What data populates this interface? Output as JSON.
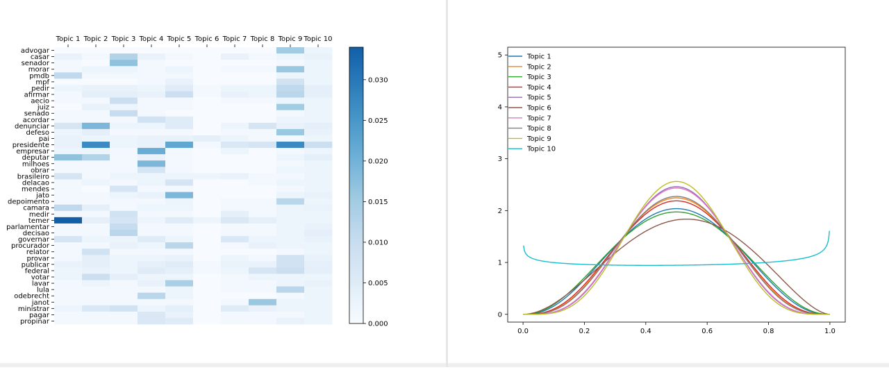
{
  "heatmap": {
    "chart_data": {
      "type": "heatmap",
      "columns": [
        "Topic 1",
        "Topic 2",
        "Topic 3",
        "Topic 4",
        "Topic 5",
        "Topic 6",
        "Topic 7",
        "Topic 8",
        "Topic 9",
        "Topic 10"
      ],
      "rows": [
        "advogar",
        "casar",
        "senador",
        "morar",
        "pmdb",
        "mpf",
        "pedir",
        "afirmar",
        "aecio",
        "juiz",
        "senado",
        "acordar",
        "denunciar",
        "defeso",
        "pai",
        "presidente",
        "empresar",
        "deputar",
        "milhoes",
        "obrar",
        "brasileiro",
        "delacao",
        "mendes",
        "jato",
        "depoimento",
        "camara",
        "medir",
        "temer",
        "parlamentar",
        "decisao",
        "governar",
        "procurador",
        "relator",
        "provar",
        "publicar",
        "federal",
        "votar",
        "lavar",
        "lula",
        "odebrecht",
        "janot",
        "ministrar",
        "pagar",
        "propinar"
      ],
      "values": [
        [
          0.0,
          0.0,
          0.0,
          0.0,
          0.0,
          0.0,
          0.0,
          0.0,
          0.015,
          0.002
        ],
        [
          0.003,
          0.001,
          0.013,
          0.003,
          0.001,
          0.0,
          0.003,
          0.001,
          0.002,
          0.003
        ],
        [
          0.001,
          0.0,
          0.017,
          0.001,
          0.0,
          0.0,
          0.0,
          0.0,
          0.001,
          0.002
        ],
        [
          0.001,
          0.002,
          0.002,
          0.001,
          0.002,
          0.0,
          0.001,
          0.001,
          0.016,
          0.002
        ],
        [
          0.011,
          0.001,
          0.001,
          0.001,
          0.001,
          0.0,
          0.0,
          0.0,
          0.002,
          0.002
        ],
        [
          0.0,
          0.0,
          0.0,
          0.001,
          0.003,
          0.0,
          0.0,
          0.0,
          0.008,
          0.002
        ],
        [
          0.002,
          0.003,
          0.003,
          0.002,
          0.005,
          0.001,
          0.002,
          0.002,
          0.011,
          0.004
        ],
        [
          0.001,
          0.004,
          0.004,
          0.003,
          0.009,
          0.001,
          0.003,
          0.002,
          0.012,
          0.004
        ],
        [
          0.001,
          0.001,
          0.009,
          0.001,
          0.001,
          0.0,
          0.001,
          0.001,
          0.002,
          0.002
        ],
        [
          0.0,
          0.003,
          0.002,
          0.001,
          0.001,
          0.0,
          0.0,
          0.0,
          0.015,
          0.002
        ],
        [
          0.001,
          0.001,
          0.01,
          0.001,
          0.0,
          0.0,
          0.0,
          0.0,
          0.001,
          0.002
        ],
        [
          0.001,
          0.001,
          0.001,
          0.008,
          0.005,
          0.0,
          0.0,
          0.0,
          0.002,
          0.002
        ],
        [
          0.007,
          0.019,
          0.002,
          0.002,
          0.005,
          0.0,
          0.002,
          0.007,
          0.003,
          0.004
        ],
        [
          0.002,
          0.004,
          0.001,
          0.001,
          0.001,
          0.0,
          0.001,
          0.001,
          0.016,
          0.003
        ],
        [
          0.003,
          0.002,
          0.002,
          0.003,
          0.003,
          0.004,
          0.002,
          0.001,
          0.001,
          0.002
        ],
        [
          0.003,
          0.027,
          0.002,
          0.003,
          0.022,
          0.001,
          0.006,
          0.007,
          0.027,
          0.009
        ],
        [
          0.002,
          0.002,
          0.001,
          0.021,
          0.001,
          0.0,
          0.002,
          0.0,
          0.001,
          0.002
        ],
        [
          0.017,
          0.013,
          0.001,
          0.003,
          0.001,
          0.0,
          0.0,
          0.0,
          0.002,
          0.004
        ],
        [
          0.001,
          0.001,
          0.001,
          0.019,
          0.001,
          0.0,
          0.0,
          0.0,
          0.001,
          0.002
        ],
        [
          0.001,
          0.001,
          0.001,
          0.007,
          0.001,
          0.0,
          0.0,
          0.0,
          0.002,
          0.002
        ],
        [
          0.007,
          0.001,
          0.002,
          0.002,
          0.002,
          0.002,
          0.003,
          0.001,
          0.001,
          0.002
        ],
        [
          0.001,
          0.002,
          0.001,
          0.002,
          0.007,
          0.0,
          0.0,
          0.001,
          0.002,
          0.002
        ],
        [
          0.001,
          0.0,
          0.007,
          0.001,
          0.001,
          0.0,
          0.0,
          0.0,
          0.001,
          0.002
        ],
        [
          0.001,
          0.001,
          0.002,
          0.003,
          0.019,
          0.0,
          0.0,
          0.0,
          0.002,
          0.003
        ],
        [
          0.001,
          0.001,
          0.001,
          0.001,
          0.002,
          0.0,
          0.001,
          0.001,
          0.012,
          0.002
        ],
        [
          0.011,
          0.004,
          0.001,
          0.002,
          0.002,
          0.0,
          0.001,
          0.001,
          0.002,
          0.003
        ],
        [
          0.001,
          0.001,
          0.008,
          0.001,
          0.001,
          0.0,
          0.004,
          0.001,
          0.002,
          0.002
        ],
        [
          0.034,
          0.004,
          0.007,
          0.002,
          0.005,
          0.002,
          0.006,
          0.004,
          0.002,
          0.002
        ],
        [
          0.001,
          0.001,
          0.01,
          0.001,
          0.001,
          0.0,
          0.001,
          0.001,
          0.002,
          0.003
        ],
        [
          0.001,
          0.001,
          0.012,
          0.001,
          0.001,
          0.0,
          0.001,
          0.001,
          0.002,
          0.004
        ],
        [
          0.007,
          0.002,
          0.002,
          0.005,
          0.002,
          0.0,
          0.006,
          0.002,
          0.002,
          0.003
        ],
        [
          0.001,
          0.001,
          0.003,
          0.002,
          0.012,
          0.0,
          0.001,
          0.003,
          0.002,
          0.002
        ],
        [
          0.001,
          0.008,
          0.001,
          0.001,
          0.001,
          0.0,
          0.0,
          0.0,
          0.001,
          0.002
        ],
        [
          0.001,
          0.004,
          0.002,
          0.002,
          0.003,
          0.0,
          0.002,
          0.001,
          0.008,
          0.003
        ],
        [
          0.003,
          0.004,
          0.002,
          0.004,
          0.005,
          0.001,
          0.003,
          0.003,
          0.008,
          0.004
        ],
        [
          0.002,
          0.003,
          0.002,
          0.005,
          0.004,
          0.001,
          0.002,
          0.007,
          0.009,
          0.004
        ],
        [
          0.002,
          0.009,
          0.004,
          0.002,
          0.002,
          0.0,
          0.001,
          0.002,
          0.002,
          0.002
        ],
        [
          0.001,
          0.002,
          0.001,
          0.003,
          0.014,
          0.0,
          0.001,
          0.001,
          0.002,
          0.003
        ],
        [
          0.001,
          0.001,
          0.001,
          0.001,
          0.002,
          0.0,
          0.001,
          0.001,
          0.012,
          0.002
        ],
        [
          0.001,
          0.001,
          0.001,
          0.012,
          0.002,
          0.0,
          0.0,
          0.0,
          0.001,
          0.002
        ],
        [
          0.001,
          0.001,
          0.001,
          0.001,
          0.001,
          0.0,
          0.001,
          0.016,
          0.002,
          0.002
        ],
        [
          0.002,
          0.006,
          0.008,
          0.002,
          0.004,
          0.0,
          0.005,
          0.003,
          0.002,
          0.002
        ],
        [
          0.001,
          0.001,
          0.001,
          0.006,
          0.003,
          0.0,
          0.001,
          0.001,
          0.001,
          0.002
        ],
        [
          0.001,
          0.001,
          0.001,
          0.006,
          0.005,
          0.0,
          0.001,
          0.001,
          0.003,
          0.002
        ]
      ],
      "vmin": 0.0,
      "vmax": 0.034,
      "colormap": "Blues",
      "colorbar_ticks": [
        0.0,
        0.005,
        0.01,
        0.015,
        0.02,
        0.025,
        0.03
      ],
      "colorbar_ticklabels": [
        "0.000",
        "0.005",
        "0.010",
        "0.015",
        "0.020",
        "0.025",
        "0.030"
      ],
      "column_label_position": "top"
    }
  },
  "lineplot": {
    "chart_data": {
      "type": "line",
      "xlim": [
        -0.05,
        1.05
      ],
      "ylim": [
        -0.15,
        5.15
      ],
      "xticks": [
        0.0,
        0.2,
        0.4,
        0.6,
        0.8,
        1.0
      ],
      "xticklabels": [
        "0.0",
        "0.2",
        "0.4",
        "0.6",
        "0.8",
        "1.0"
      ],
      "yticks": [
        0,
        1,
        2,
        3,
        4,
        5
      ],
      "yticklabels": [
        "0",
        "1",
        "2",
        "3",
        "4",
        "5"
      ],
      "legend_position": "top-left",
      "grid": false,
      "series": [
        {
          "name": "Topic 1",
          "color": "#1f77b4",
          "curve": "beta",
          "a": 3.5,
          "b": 3.5
        },
        {
          "name": "Topic 2",
          "color": "#ff7f0e",
          "curve": "beta",
          "a": 4.2,
          "b": 4.2
        },
        {
          "name": "Topic 3",
          "color": "#2ca02c",
          "curve": "beta",
          "a": 3.3,
          "b": 3.3
        },
        {
          "name": "Topic 4",
          "color": "#d62728",
          "curve": "beta",
          "a": 4.0,
          "b": 4.0
        },
        {
          "name": "Topic 5",
          "color": "#9467bd",
          "curve": "beta",
          "a": 5.0,
          "b": 5.0
        },
        {
          "name": "Topic 6",
          "color": "#8c564b",
          "curve": "beta",
          "a": 3.0,
          "b": 2.75
        },
        {
          "name": "Topic 7",
          "color": "#e377c2",
          "curve": "beta",
          "a": 4.9,
          "b": 4.9
        },
        {
          "name": "Topic 8",
          "color": "#7f7f7f",
          "curve": "beta",
          "a": 4.3,
          "b": 4.3
        },
        {
          "name": "Topic 9",
          "color": "#bcbd22",
          "curve": "beta",
          "a": 5.4,
          "b": 5.4
        },
        {
          "name": "Topic 10",
          "color": "#17becf",
          "curve": "beta",
          "a": 0.93,
          "b": 0.9
        }
      ]
    }
  }
}
